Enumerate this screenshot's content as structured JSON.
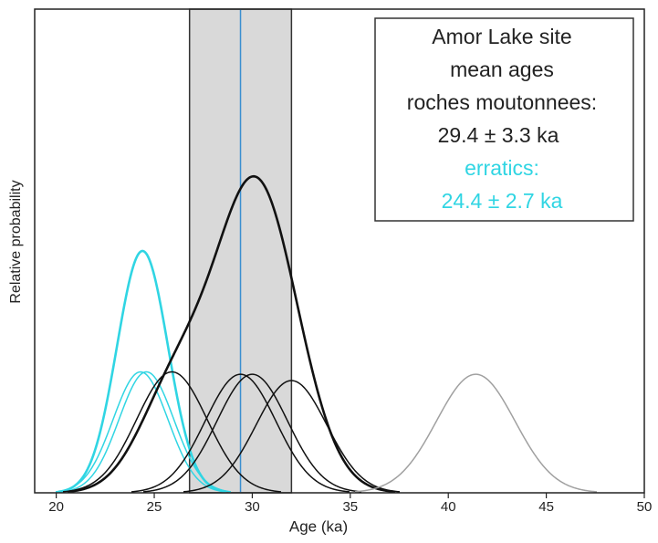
{
  "chart_data": {
    "type": "density",
    "xlabel": "Age (ka)",
    "ylabel": "Relative probability",
    "xlim": [
      18.9,
      50
    ],
    "ylim": [
      0,
      1
    ],
    "xticks": [
      20,
      25,
      30,
      35,
      40,
      45,
      50
    ],
    "band": {
      "range": [
        26.8,
        32.0
      ],
      "color": "#d9d9d9"
    },
    "mean_line": {
      "value": 29.4,
      "color": "#3a8fd0"
    },
    "curves": [
      {
        "color": "#30d5e3",
        "mean": 24.3,
        "sigma": 1.4,
        "peak": 0.25
      },
      {
        "color": "#30d5e3",
        "mean": 24.6,
        "sigma": 1.4,
        "peak": 0.25
      },
      {
        "color": "#30d5e3",
        "mean": 24.4,
        "sigma": 1.3,
        "peak": 0.5,
        "bold": true
      },
      {
        "color": "#111111",
        "mean": 25.9,
        "sigma": 1.8,
        "peak": 0.25
      },
      {
        "color": "#111111",
        "mean": 29.4,
        "sigma": 1.8,
        "peak": 0.245
      },
      {
        "color": "#111111",
        "mean": 30.0,
        "sigma": 1.8,
        "peak": 0.245
      },
      {
        "color": "#111111",
        "mean": 32.0,
        "sigma": 1.8,
        "peak": 0.232
      },
      {
        "color": "#111111",
        "bold": true,
        "components": [
          {
            "mean": 30.2,
            "sigma": 2.1,
            "peak": 0.64
          },
          {
            "mean": 26.0,
            "sigma": 1.8,
            "peak": 0.2
          }
        ]
      },
      {
        "color": "#a0a0a0",
        "mean": 41.4,
        "sigma": 2.0,
        "peak": 0.245
      }
    ],
    "annotation": {
      "lines": [
        "Amor Lake site",
        "mean ages",
        "roches moutonnees:",
        "29.4 ± 3.3 ka"
      ],
      "cyan_lines": [
        "erratics:",
        "24.4 ± 2.7 ka"
      ],
      "cyan_color": "#30d5e3"
    }
  }
}
